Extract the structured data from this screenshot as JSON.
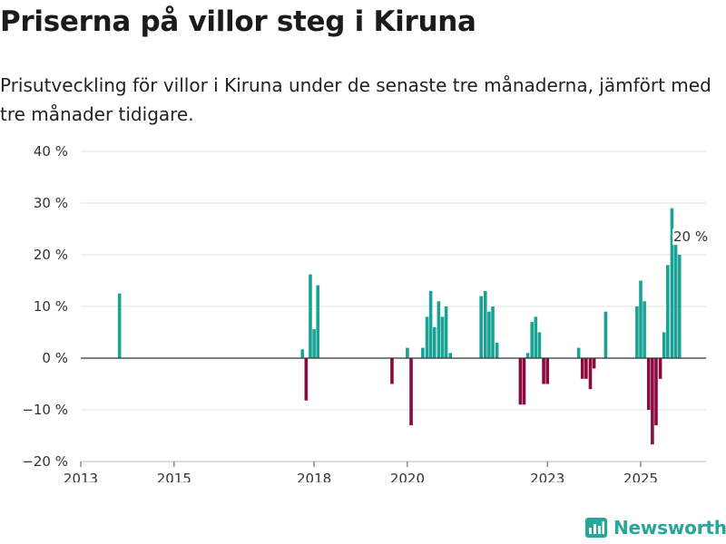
{
  "header": {
    "title": "Priserna på villor steg i Kiruna",
    "subtitle": "Prisutveckling för villor i Kiruna under de senaste tre månaderna, jämfört med tre månader tidigare."
  },
  "brand": {
    "name": "Newsworthy",
    "color": "#26a79a"
  },
  "chart_data": {
    "type": "bar",
    "title": "Priserna på villor steg i Kiruna",
    "xlabel": "",
    "ylabel": "",
    "ylim": [
      -20,
      40
    ],
    "xlim": [
      2013.0,
      2026.4
    ],
    "yticks": [
      -20,
      -10,
      0,
      10,
      20,
      30,
      40
    ],
    "ytick_labels": [
      "−20 %",
      "−10 %",
      "0 %",
      "10 %",
      "20 %",
      "30 %",
      "40 %"
    ],
    "xticks": [
      2013,
      2015,
      2018,
      2020,
      2023,
      2025
    ],
    "xtick_labels": [
      "2013",
      "2015",
      "2018",
      "2020",
      "2023",
      "2025"
    ],
    "grid": true,
    "colors": {
      "positive": "#1aa395",
      "negative": "#8c0a3f"
    },
    "annotation": {
      "x": 2026.07,
      "value": 20,
      "label": "20 %"
    },
    "x": [
      2013.83,
      2017.75,
      2017.83,
      2017.92,
      2018.0,
      2018.08,
      2019.67,
      2020.0,
      2020.08,
      2020.33,
      2020.42,
      2020.5,
      2020.58,
      2020.67,
      2020.75,
      2020.83,
      2020.92,
      2021.58,
      2021.67,
      2021.75,
      2021.83,
      2021.92,
      2022.42,
      2022.5,
      2022.58,
      2022.67,
      2022.75,
      2022.83,
      2022.92,
      2023.0,
      2023.67,
      2023.75,
      2023.83,
      2023.92,
      2024.0,
      2024.25,
      2024.92,
      2025.0,
      2025.08,
      2025.17,
      2025.25,
      2025.33,
      2025.42,
      2025.5,
      2025.58,
      2025.67,
      2025.75,
      2025.83
    ],
    "values": [
      12.5,
      1.7,
      -8.2,
      16.2,
      5.6,
      14.1,
      -5.0,
      2.0,
      -13.0,
      2.0,
      8.0,
      13.0,
      6.0,
      11.0,
      8.0,
      10.0,
      1.0,
      12.0,
      13.0,
      9.0,
      10.0,
      3.0,
      -9.0,
      -9.0,
      1.0,
      7.0,
      8.0,
      5.0,
      -5.0,
      -5.0,
      2.0,
      -4.0,
      -4.0,
      -6.0,
      -2.0,
      9.0,
      10.0,
      15.0,
      11.0,
      -10.0,
      -16.7,
      -13.0,
      -4.0,
      5.0,
      18.0,
      29.0,
      22.0,
      20.0
    ]
  }
}
